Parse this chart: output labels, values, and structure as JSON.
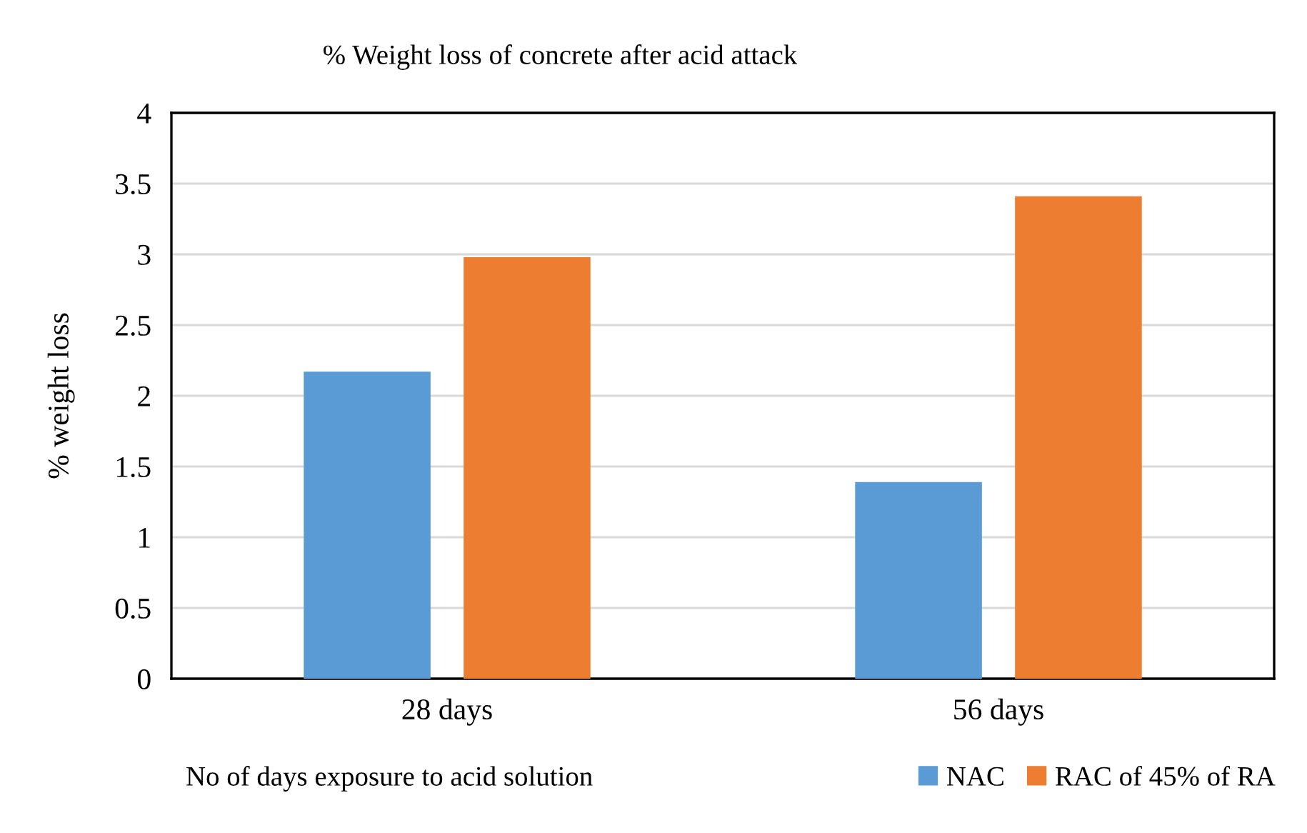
{
  "chart_data": {
    "type": "bar",
    "title": "% Weight loss of concrete after acid attack",
    "xlabel": "No of days exposure to acid solution",
    "ylabel": "% weight loss",
    "categories": [
      "28 days",
      "56 days"
    ],
    "series": [
      {
        "name": "NAC",
        "color": "#5b9bd5",
        "values": [
          2.17,
          1.39
        ]
      },
      {
        "name": "RAC of 45% of RA",
        "color": "#ed7d31",
        "values": [
          2.98,
          3.41
        ]
      }
    ],
    "ylim": [
      0,
      4
    ],
    "yticks": [
      0,
      0.5,
      1,
      1.5,
      2,
      2.5,
      3,
      3.5,
      4
    ],
    "grid": "y",
    "legend": "bottom"
  }
}
